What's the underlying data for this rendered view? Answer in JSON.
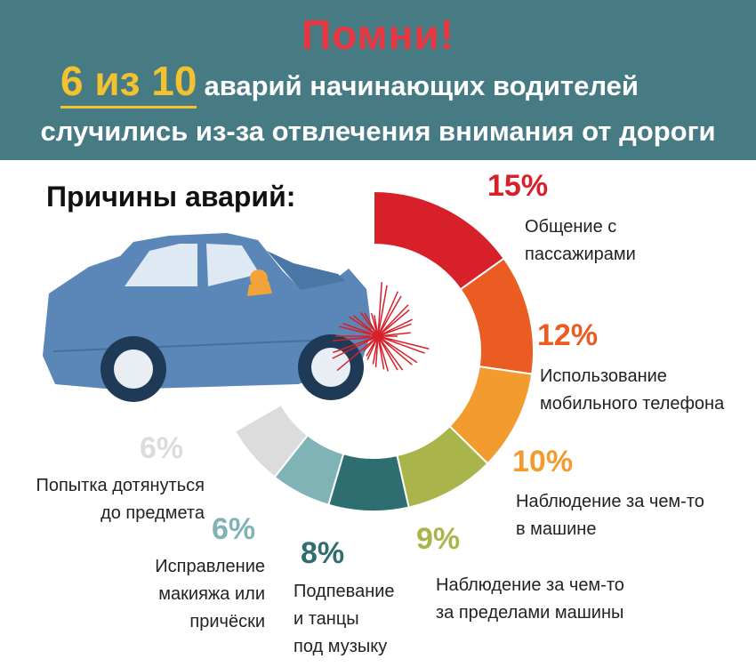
{
  "banner": {
    "title": "Помни!",
    "stat_big": "6 из 10",
    "line1_rest": "аварий начинающих водителей",
    "line2": "случились из-за отвлечения внимания от дороги"
  },
  "heading": "Причины аварий:",
  "reasons": [
    {
      "pct": "15%",
      "label": [
        "Общение с",
        "пассажирами"
      ],
      "value": 15,
      "color": "#d7202a"
    },
    {
      "pct": "12%",
      "label": [
        "Использование",
        "мобильного телефона"
      ],
      "value": 12,
      "color": "#eb5c23"
    },
    {
      "pct": "10%",
      "label": [
        "Наблюдение за чем-то",
        "в машине"
      ],
      "value": 10,
      "color": "#f29b2e"
    },
    {
      "pct": "9%",
      "label": [
        "Наблюдение за чем-то",
        "за пределами машины"
      ],
      "value": 9,
      "color": "#a9b54a"
    },
    {
      "pct": "8%",
      "label": [
        "Подпевание",
        "и танцы",
        "под музыку"
      ],
      "value": 8,
      "color": "#2f6e70"
    },
    {
      "pct": "6%",
      "label": [
        "Исправление",
        "макияжа или",
        "причёски"
      ],
      "value": 6,
      "color": "#7fb3b6"
    },
    {
      "pct": "6%",
      "label": [
        "Попытка дотянуться",
        "до предмета"
      ],
      "value": 6,
      "color": "#dcdcdc"
    }
  ]
}
